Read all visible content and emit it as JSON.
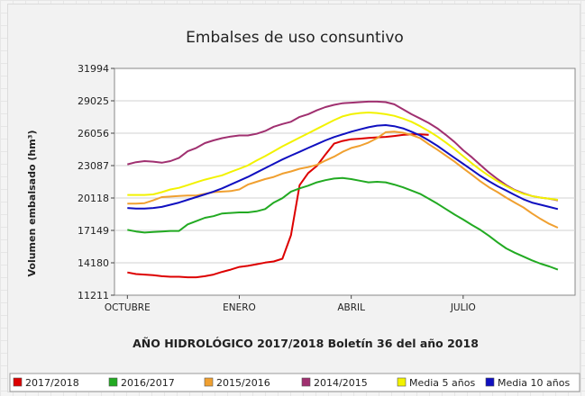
{
  "chart_data": {
    "type": "line",
    "title": "Embalses de uso consuntivo",
    "ylabel": "Volumen embalsado (hm³)",
    "xlabel": "AÑO HIDROLÓGICO 2017/2018 Boletín 36 del año 2018",
    "yticks": [
      "31994",
      "29025",
      "26056",
      "23087",
      "20118",
      "17149",
      "14180",
      "11211"
    ],
    "ylim": [
      11211,
      31994
    ],
    "xticks": [
      {
        "week": 0,
        "label": "OCTUBRE"
      },
      {
        "week": 13,
        "label": "ENERO"
      },
      {
        "week": 26,
        "label": "ABRIL"
      },
      {
        "week": 39,
        "label": "JULIO"
      }
    ],
    "xlim": [
      -1.5,
      52
    ],
    "grid": true,
    "legend_position": "bottom",
    "series": [
      {
        "name": "2017/2018",
        "color": "#dd0000",
        "x": [
          0,
          1,
          2,
          3,
          4,
          5,
          6,
          7,
          8,
          9,
          10,
          11,
          12,
          13,
          14,
          15,
          16,
          17,
          18,
          19,
          20,
          21,
          22,
          23,
          24,
          25,
          26,
          27,
          28,
          29,
          30,
          31,
          32,
          33,
          34,
          35
        ],
        "values": [
          13300,
          13150,
          13100,
          13050,
          12950,
          12900,
          12900,
          12850,
          12850,
          12950,
          13100,
          13350,
          13550,
          13800,
          13900,
          14050,
          14200,
          14300,
          14550,
          16700,
          21300,
          22400,
          23050,
          24100,
          25100,
          25350,
          25500,
          25550,
          25620,
          25680,
          25720,
          25800,
          25900,
          25950,
          25950,
          25900
        ]
      },
      {
        "name": "2016/2017",
        "color": "#22aa22",
        "x": [
          0,
          1,
          2,
          3,
          4,
          5,
          6,
          7,
          8,
          9,
          10,
          11,
          12,
          13,
          14,
          15,
          16,
          17,
          18,
          19,
          20,
          21,
          22,
          23,
          24,
          25,
          26,
          27,
          28,
          29,
          30,
          31,
          32,
          33,
          34,
          35,
          36,
          37,
          38,
          39,
          40,
          41,
          42,
          43,
          44,
          45,
          46,
          47,
          48,
          49,
          50
        ],
        "values": [
          17200,
          17050,
          16950,
          17000,
          17050,
          17100,
          17100,
          17700,
          18000,
          18300,
          18450,
          18700,
          18750,
          18800,
          18800,
          18900,
          19100,
          19700,
          20100,
          20700,
          21000,
          21250,
          21550,
          21750,
          21900,
          21950,
          21850,
          21700,
          21550,
          21600,
          21550,
          21350,
          21100,
          20800,
          20500,
          20050,
          19600,
          19100,
          18600,
          18150,
          17650,
          17200,
          16650,
          16050,
          15500,
          15100,
          14750,
          14400,
          14100,
          13850,
          13550
        ]
      },
      {
        "name": "2015/2016",
        "color": "#f0a030",
        "x": [
          0,
          1,
          2,
          3,
          4,
          5,
          6,
          7,
          8,
          9,
          10,
          11,
          12,
          13,
          14,
          15,
          16,
          17,
          18,
          19,
          20,
          21,
          22,
          23,
          24,
          25,
          26,
          27,
          28,
          29,
          30,
          31,
          32,
          33,
          34,
          35,
          36,
          37,
          38,
          39,
          40,
          41,
          42,
          43,
          44,
          45,
          46,
          47,
          48,
          49,
          50
        ],
        "values": [
          19600,
          19600,
          19650,
          19900,
          20200,
          20250,
          20300,
          20350,
          20350,
          20500,
          20650,
          20700,
          20750,
          20900,
          21350,
          21600,
          21850,
          22050,
          22350,
          22550,
          22800,
          22950,
          23150,
          23550,
          23900,
          24350,
          24700,
          24900,
          25200,
          25600,
          26150,
          26200,
          26100,
          25900,
          25600,
          25050,
          24550,
          24000,
          23450,
          22850,
          22250,
          21650,
          21100,
          20650,
          20150,
          19700,
          19250,
          18700,
          18200,
          17750,
          17400
        ]
      },
      {
        "name": "2014/2015",
        "color": "#a03070",
        "x": [
          0,
          1,
          2,
          3,
          4,
          5,
          6,
          7,
          8,
          9,
          10,
          11,
          12,
          13,
          14,
          15,
          16,
          17,
          18,
          19,
          20,
          21,
          22,
          23,
          24,
          25,
          26,
          27,
          28,
          29,
          30,
          31,
          32,
          33,
          34,
          35,
          36,
          37,
          38,
          39,
          40,
          41,
          42,
          43,
          44,
          45,
          46,
          47,
          48,
          49,
          50
        ],
        "values": [
          23200,
          23400,
          23500,
          23450,
          23350,
          23500,
          23800,
          24400,
          24700,
          25150,
          25400,
          25600,
          25750,
          25850,
          25850,
          26000,
          26250,
          26650,
          26900,
          27100,
          27550,
          27800,
          28150,
          28450,
          28650,
          28800,
          28850,
          28900,
          28950,
          28950,
          28900,
          28700,
          28250,
          27800,
          27400,
          27000,
          26500,
          25900,
          25250,
          24500,
          23850,
          23150,
          22450,
          21850,
          21300,
          20850,
          20550,
          20300,
          20150,
          20050,
          19900
        ]
      },
      {
        "name": "Media 5 años",
        "color": "#f2f200",
        "x": [
          0,
          1,
          2,
          3,
          4,
          5,
          6,
          7,
          8,
          9,
          10,
          11,
          12,
          13,
          14,
          15,
          16,
          17,
          18,
          19,
          20,
          21,
          22,
          23,
          24,
          25,
          26,
          27,
          28,
          29,
          30,
          31,
          32,
          33,
          34,
          35,
          36,
          37,
          38,
          39,
          40,
          41,
          42,
          43,
          44,
          45,
          46,
          47,
          48,
          49,
          50
        ],
        "values": [
          20400,
          20400,
          20400,
          20450,
          20650,
          20900,
          21050,
          21300,
          21550,
          21800,
          22000,
          22200,
          22500,
          22800,
          23100,
          23550,
          23950,
          24400,
          24850,
          25250,
          25650,
          26050,
          26450,
          26850,
          27250,
          27600,
          27800,
          27900,
          27950,
          27900,
          27800,
          27650,
          27400,
          27100,
          26700,
          26250,
          25750,
          25200,
          24600,
          23950,
          23300,
          22700,
          22150,
          21650,
          21200,
          20800,
          20500,
          20300,
          20150,
          20050,
          19950
        ]
      },
      {
        "name": "Media 10 años",
        "color": "#1010c0",
        "x": [
          0,
          1,
          2,
          3,
          4,
          5,
          6,
          7,
          8,
          9,
          10,
          11,
          12,
          13,
          14,
          15,
          16,
          17,
          18,
          19,
          20,
          21,
          22,
          23,
          24,
          25,
          26,
          27,
          28,
          29,
          30,
          31,
          32,
          33,
          34,
          35,
          36,
          37,
          38,
          39,
          40,
          41,
          42,
          43,
          44,
          45,
          46,
          47,
          48,
          49,
          50
        ],
        "values": [
          19200,
          19150,
          19150,
          19200,
          19300,
          19500,
          19700,
          19950,
          20200,
          20450,
          20700,
          21000,
          21350,
          21700,
          22050,
          22450,
          22850,
          23250,
          23650,
          24000,
          24350,
          24700,
          25050,
          25400,
          25700,
          25950,
          26200,
          26400,
          26600,
          26750,
          26800,
          26700,
          26500,
          26200,
          25850,
          25400,
          24900,
          24350,
          23800,
          23250,
          22700,
          22150,
          21650,
          21200,
          20800,
          20400,
          20000,
          19700,
          19500,
          19300,
          19100
        ]
      }
    ]
  }
}
